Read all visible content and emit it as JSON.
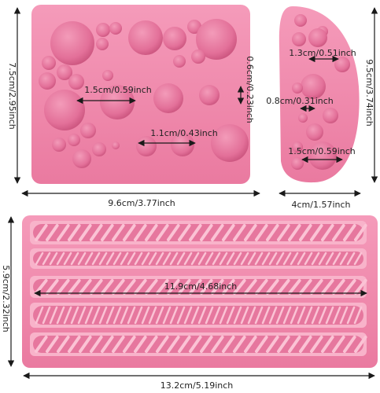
{
  "colors": {
    "mold_pink": "#ef86a8",
    "mold_shadow": "#cf5d86",
    "mold_highlight": "#f7aac4",
    "cavity": "#e06d95",
    "background": "#ffffff",
    "dimension_line": "#1a1a1a"
  },
  "molds": {
    "circle_mold": {
      "width_label": "9.6cm/3.77inch",
      "height_label": "7.5cm/2.95inch",
      "circle_large_label": "1.5cm/0.59inch",
      "circle_medium_label": "1.1cm/0.43inch",
      "circle_small_label": "0.6cm/0.23inch"
    },
    "pebble_mold": {
      "width_label": "4cm/1.57inch",
      "height_label": "9.5cm/3.74inch",
      "circle_a_label": "1.3cm/0.51inch",
      "circle_b_label": "0.8cm/0.31inch",
      "circle_c_label": "1.5cm/0.59inch"
    },
    "rope_mold": {
      "width_label": "13.2cm/5.19inch",
      "height_label": "5.9cm/2.32inch",
      "rope_length_label": "11.9cm/4.68inch"
    }
  }
}
